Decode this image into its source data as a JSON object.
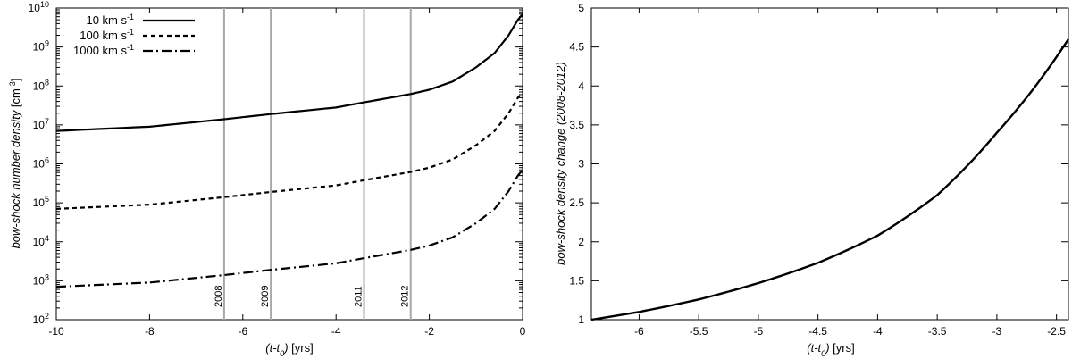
{
  "chart_data": [
    {
      "type": "line",
      "title": "",
      "xlabel": "(t-t0) [yrs]",
      "ylabel": "bow-shock number density [cm-3]",
      "xlim": [
        -10,
        0
      ],
      "ylim": [
        100,
        10000000000
      ],
      "yscale": "log",
      "x_ticks": [
        -10,
        -8,
        -6,
        -4,
        -2,
        0
      ],
      "y_tick_exponents": [
        2,
        3,
        4,
        5,
        6,
        7,
        8,
        9,
        10
      ],
      "legend_position": "top-left",
      "legend": [
        {
          "text": "10 km s",
          "sup": "-1",
          "style": "solid"
        },
        {
          "text": "100 km s",
          "sup": "-1",
          "style": "dashed"
        },
        {
          "text": "1000 km s",
          "sup": "-1",
          "style": "dash-dot"
        }
      ],
      "series": [
        {
          "name": "10 km s-1",
          "style": "solid",
          "x": [
            -10,
            -8,
            -6.4,
            -5.4,
            -4,
            -3.4,
            -2.4,
            -2,
            -1.5,
            -1,
            -0.6,
            -0.3,
            -0.1,
            0
          ],
          "y": [
            7000000,
            9000000,
            14000000,
            19000000,
            28000000,
            38000000,
            62000000,
            80000000,
            130000000,
            300000000,
            700000000,
            2000000000,
            5000000000,
            7000000000
          ]
        },
        {
          "name": "100 km s-1",
          "style": "dashed",
          "x": [
            -10,
            -8,
            -6.4,
            -5.4,
            -4,
            -3.4,
            -2.4,
            -2,
            -1.5,
            -1,
            -0.6,
            -0.3,
            -0.1,
            0
          ],
          "y": [
            70000,
            90000,
            140000,
            190000,
            280000,
            380000,
            620000,
            800000,
            1300000,
            3000000,
            7000000,
            20000000,
            50000000,
            70000000
          ]
        },
        {
          "name": "1000 km s-1",
          "style": "dash-dot",
          "x": [
            -10,
            -8,
            -6.4,
            -5.4,
            -4,
            -3.4,
            -2.4,
            -2,
            -1.5,
            -1,
            -0.6,
            -0.3,
            -0.1,
            0
          ],
          "y": [
            700,
            900,
            1400,
            1900,
            2800,
            3800,
            6200,
            8000,
            13000,
            30000,
            70000,
            200000,
            500000,
            700000
          ]
        }
      ],
      "vertical_lines": [
        {
          "x": -6.4,
          "label": "2008"
        },
        {
          "x": -5.4,
          "label": "2009"
        },
        {
          "x": -3.4,
          "label": "2011"
        },
        {
          "x": -2.4,
          "label": "2012"
        }
      ],
      "grid": false
    },
    {
      "type": "line",
      "title": "",
      "xlabel": "(t-t0) [yrs]",
      "ylabel": "bow-shock density change (2008-2012)",
      "xlim": [
        -6.4,
        -2.4
      ],
      "ylim": [
        1,
        5
      ],
      "x_ticks": [
        -6,
        -5.5,
        -5,
        -4.5,
        -4,
        -3.5,
        -3,
        -2.5
      ],
      "y_ticks": [
        1,
        1.5,
        2,
        2.5,
        3,
        3.5,
        4,
        4.5,
        5
      ],
      "series": [
        {
          "style": "solid",
          "x": [
            -6.4,
            -6.0,
            -5.5,
            -5.0,
            -4.5,
            -4.0,
            -3.5,
            -3.0,
            -2.7,
            -2.4
          ],
          "y": [
            1.0,
            1.1,
            1.26,
            1.47,
            1.73,
            2.08,
            2.6,
            3.4,
            3.95,
            4.6
          ]
        }
      ],
      "grid": false
    }
  ]
}
